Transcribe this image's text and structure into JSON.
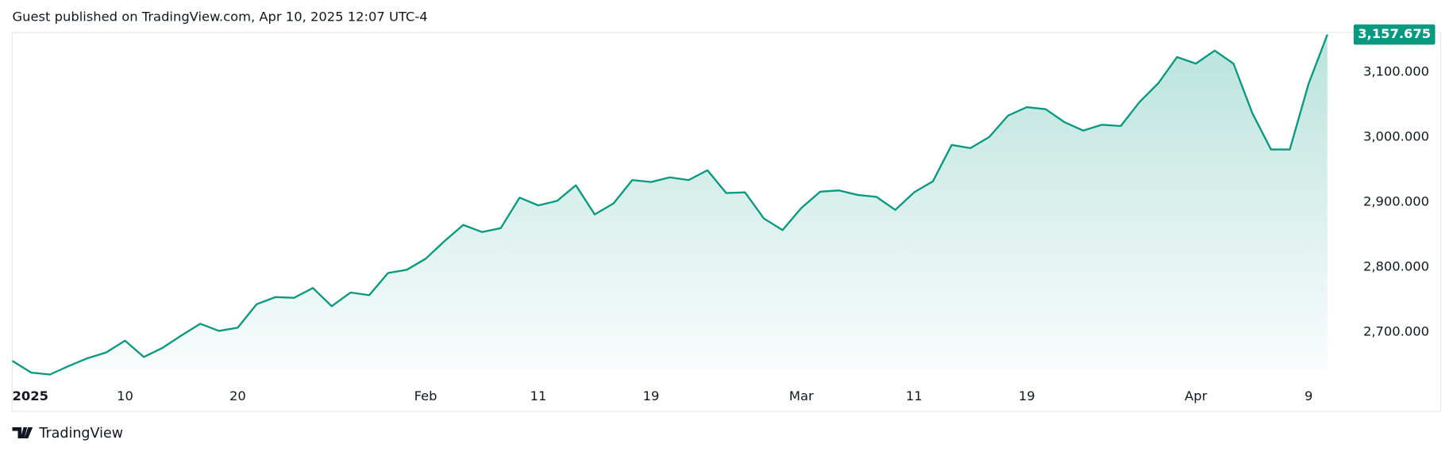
{
  "header": {
    "text": "Guest published on TradingView.com, Apr 10, 2025 12:07 UTC-4"
  },
  "footer": {
    "brand": "TradingView"
  },
  "chart_data": {
    "type": "area",
    "color": "#089981",
    "x": [
      0,
      1,
      2,
      3,
      4,
      5,
      6,
      7,
      8,
      9,
      10,
      11,
      12,
      13,
      14,
      15,
      16,
      17,
      18,
      19,
      20,
      21,
      22,
      23,
      24,
      25,
      26,
      27,
      28,
      29,
      30,
      31,
      32,
      33,
      34,
      35,
      36,
      37,
      38,
      39,
      40,
      41,
      42,
      43,
      44,
      45,
      46,
      47,
      48,
      49,
      50,
      51,
      52,
      53,
      54,
      55,
      56,
      57,
      58,
      59,
      60,
      61,
      62,
      63,
      64,
      65,
      66,
      67,
      68,
      69,
      70
    ],
    "values": [
      2656,
      2638,
      2635,
      2648,
      2660,
      2669,
      2687,
      2662,
      2676,
      2695,
      2713,
      2702,
      2707,
      2743,
      2754,
      2753,
      2768,
      2740,
      2761,
      2757,
      2791,
      2796,
      2813,
      2840,
      2865,
      2854,
      2860,
      2907,
      2895,
      2902,
      2926,
      2881,
      2898,
      2934,
      2931,
      2938,
      2934,
      2949,
      2914,
      2915,
      2875,
      2857,
      2891,
      2916,
      2918,
      2911,
      2908,
      2888,
      2915,
      2932,
      2988,
      2983,
      3000,
      3033,
      3046,
      3043,
      3023,
      3010,
      3019,
      3017,
      3054,
      3083,
      3123,
      3113,
      3133,
      3113,
      3037,
      2981,
      2981,
      3082,
      3157.675
    ],
    "last_value_label": "3,157.675",
    "xlim": [
      0,
      71.1
    ],
    "xticks": [
      {
        "value": 0,
        "label": "2025"
      },
      {
        "value": 6,
        "label": "10"
      },
      {
        "value": 12,
        "label": "20"
      },
      {
        "value": 22,
        "label": "Feb"
      },
      {
        "value": 28,
        "label": "11"
      },
      {
        "value": 34,
        "label": "19"
      },
      {
        "value": 42,
        "label": "Mar"
      },
      {
        "value": 48,
        "label": "11"
      },
      {
        "value": 54,
        "label": "19"
      },
      {
        "value": 63,
        "label": "Apr"
      },
      {
        "value": 69,
        "label": "9"
      }
    ],
    "ylim": [
      2625,
      3161
    ],
    "yticks": [
      {
        "value": 2700,
        "label": "2,700.000"
      },
      {
        "value": 2800,
        "label": "2,800.000"
      },
      {
        "value": 2900,
        "label": "2,900.000"
      },
      {
        "value": 3000,
        "label": "3,000.000"
      },
      {
        "value": 3100,
        "label": "3,100.000"
      }
    ]
  }
}
